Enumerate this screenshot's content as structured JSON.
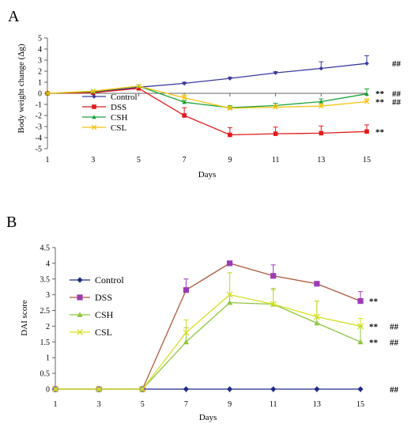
{
  "chart_data": [
    {
      "type": "line",
      "panel": "A",
      "title": "",
      "xlabel": "Days",
      "ylabel": "Body weight change (Δg)",
      "x": [
        1,
        3,
        5,
        7,
        9,
        11,
        13,
        15
      ],
      "xlim": [
        1,
        15
      ],
      "ylim": [
        -5,
        5
      ],
      "yticks": [
        -5,
        -4,
        -3,
        -2,
        -1,
        0,
        1,
        2,
        3,
        4,
        5
      ],
      "xticks": [
        1,
        3,
        5,
        7,
        9,
        11,
        13,
        15
      ],
      "grid": false,
      "legend_position": "lower-left",
      "series": [
        {
          "name": "Control",
          "color": "#3a3aa0",
          "marker": "diamond",
          "values": [
            0,
            0.1,
            0.55,
            0.9,
            1.35,
            1.85,
            2.25,
            2.7
          ],
          "errors": [
            0,
            0,
            0,
            0.1,
            0.1,
            0.1,
            0.6,
            0.7
          ]
        },
        {
          "name": "DSS",
          "color": "#e31a1c",
          "marker": "square",
          "values": [
            0,
            0.05,
            0.45,
            -2.0,
            -3.75,
            -3.65,
            -3.6,
            -3.45
          ],
          "errors": [
            0,
            0,
            0,
            0.7,
            0.65,
            0.6,
            0.65,
            0.6
          ]
        },
        {
          "name": "CSH",
          "color": "#1aa23a",
          "marker": "triangle",
          "values": [
            0,
            0.15,
            0.65,
            -0.8,
            -1.3,
            -1.1,
            -0.75,
            -0.05
          ],
          "errors": [
            0,
            0,
            0,
            0.15,
            0.2,
            0.2,
            0.25,
            0.45
          ]
        },
        {
          "name": "CSL",
          "color": "#f4c20d",
          "marker": "cross",
          "values": [
            0,
            0.2,
            0.65,
            -0.4,
            -1.35,
            -1.25,
            -1.15,
            -0.75
          ],
          "errors": [
            0,
            0,
            0,
            0.25,
            0.2,
            0.2,
            0.2,
            0.25
          ]
        }
      ],
      "annotations": [
        {
          "y": 2.7,
          "text": "##",
          "column": 2
        },
        {
          "y": 0.0,
          "text": "**",
          "column": 1
        },
        {
          "y": 0.0,
          "text": "##",
          "column": 2
        },
        {
          "y": -0.75,
          "text": "**",
          "column": 1
        },
        {
          "y": -0.75,
          "text": "##",
          "column": 2
        },
        {
          "y": -3.45,
          "text": "**",
          "column": 1
        }
      ]
    },
    {
      "type": "line",
      "panel": "B",
      "title": "",
      "xlabel": "Days",
      "ylabel": "DAI score",
      "x": [
        1,
        3,
        5,
        7,
        9,
        11,
        13,
        15
      ],
      "xlim": [
        1,
        15
      ],
      "ylim": [
        0,
        4.5
      ],
      "yticks": [
        0,
        0.5,
        1,
        1.5,
        2,
        2.5,
        3,
        3.5,
        4,
        4.5
      ],
      "xticks": [
        1,
        3,
        5,
        7,
        9,
        11,
        13,
        15
      ],
      "grid": false,
      "legend_position": "left-middle",
      "series": [
        {
          "name": "Control",
          "color": "#1f2a8a",
          "marker": "diamond",
          "values": [
            0,
            0,
            0,
            0,
            0,
            0,
            0,
            0
          ],
          "errors": [
            0,
            0,
            0,
            0,
            0,
            0,
            0,
            0
          ]
        },
        {
          "name": "DSS",
          "color": "#9b3bb5",
          "line_color": "#b05a3c",
          "marker": "square",
          "values": [
            0,
            0,
            0,
            3.15,
            4.0,
            3.6,
            3.35,
            2.8
          ],
          "errors": [
            0,
            0,
            0,
            0.35,
            0,
            0.35,
            0,
            0.3
          ]
        },
        {
          "name": "CSH",
          "color": "#8cc63f",
          "marker": "triangle",
          "values": [
            0,
            0,
            0,
            1.5,
            2.75,
            2.7,
            2.1,
            1.5
          ],
          "errors": [
            0,
            0,
            0,
            0.45,
            0.95,
            0.5,
            0.7,
            0.5
          ]
        },
        {
          "name": "CSL",
          "color": "#d4e021",
          "marker": "cross",
          "values": [
            0,
            0,
            0,
            1.8,
            3.0,
            2.7,
            2.3,
            2.0
          ],
          "errors": [
            0,
            0,
            0,
            0.4,
            0.7,
            0.45,
            0.5,
            0.25
          ]
        }
      ],
      "annotations": [
        {
          "y": 2.8,
          "text": "**",
          "column": 1
        },
        {
          "y": 2.0,
          "text": "**",
          "column": 1
        },
        {
          "y": 2.0,
          "text": "##",
          "column": 2
        },
        {
          "y": 1.5,
          "text": "**",
          "column": 1
        },
        {
          "y": 1.5,
          "text": "##",
          "column": 2
        },
        {
          "y": 0.0,
          "text": "##",
          "column": 2
        }
      ]
    }
  ]
}
